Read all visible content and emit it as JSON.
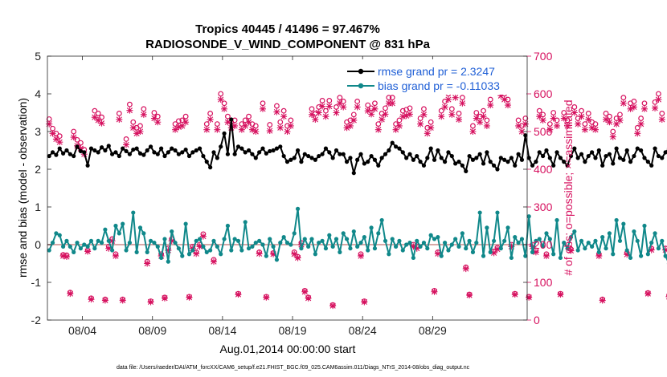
{
  "chart_data": {
    "type": "line",
    "title": "Tropics 40445 / 41496 = 97.467%",
    "subtitle": "RADIOSONDE_V_WIND_COMPONENT @ 831 hPa",
    "xlabel": "Aug.01,2014 00:00:00 start",
    "ylabel_left": "rmse and bias (model - observation)",
    "ylabel_right": "# of obs: o=possible; ×=assimilated",
    "ylim_left": [
      -2,
      5
    ],
    "yticks_left": [
      "-2",
      "-1",
      "0",
      "1",
      "2",
      "3",
      "4",
      "5"
    ],
    "ylim_right": [
      0,
      700
    ],
    "yticks_right": [
      "0",
      "100",
      "200",
      "300",
      "400",
      "500",
      "600",
      "700"
    ],
    "xlim": [
      1.5,
      35.75
    ],
    "xticks": [
      {
        "value": 4,
        "label": "08/04"
      },
      {
        "value": 9,
        "label": "08/09"
      },
      {
        "value": 14,
        "label": "08/14"
      },
      {
        "value": 19,
        "label": "08/19"
      },
      {
        "value": 24,
        "label": "08/24"
      },
      {
        "value": 29,
        "label": "08/29"
      }
    ],
    "legend": [
      {
        "label": "rmse grand pr = 2.3247",
        "color": "#000000",
        "marker": "diamond"
      },
      {
        "label": "bias grand pr = -0.11033",
        "color": "#10888a",
        "marker": "diamond"
      }
    ],
    "zero_line_color": "#d9a8a8",
    "series": [
      {
        "name": "rmse",
        "axis": "left",
        "color": "#000000",
        "values": [
          2.35,
          2.45,
          2.38,
          2.55,
          2.42,
          2.5,
          2.4,
          2.35,
          2.6,
          2.48,
          2.45,
          2.1,
          2.55,
          2.5,
          2.45,
          2.58,
          2.5,
          2.62,
          2.4,
          2.45,
          2.35,
          2.55,
          2.48,
          2.4,
          2.52,
          2.55,
          2.42,
          2.38,
          2.5,
          2.6,
          2.45,
          2.4,
          2.55,
          2.35,
          2.45,
          2.55,
          2.5,
          2.4,
          2.45,
          2.52,
          2.35,
          2.45,
          2.5,
          2.55,
          2.35,
          2.2,
          2.05,
          2.45,
          2.3,
          2.6,
          2.95,
          2.4,
          3.32,
          2.4,
          2.6,
          2.55,
          2.45,
          2.5,
          2.4,
          2.3,
          2.45,
          2.55,
          2.42,
          2.48,
          2.5,
          2.55,
          2.6,
          2.35,
          2.2,
          2.25,
          2.3,
          2.5,
          2.2,
          2.4,
          2.35,
          2.3,
          2.25,
          2.35,
          2.4,
          2.55,
          2.45,
          2.3,
          2.5,
          2.4,
          2.4,
          2.2,
          2.3,
          1.9,
          2.25,
          2.4,
          2.15,
          2.2,
          2.35,
          2.25,
          2.1,
          2.3,
          2.4,
          2.5,
          2.7,
          2.6,
          2.55,
          2.45,
          2.3,
          2.4,
          2.25,
          2.35,
          2.2,
          2.1,
          2.3,
          2.55,
          2.25,
          2.5,
          2.3,
          2.2,
          2.45,
          2.35,
          2.15,
          2.2,
          2.1,
          1.95,
          2.35,
          2.25,
          2.3,
          2.4,
          2.15,
          2.45,
          2.2,
          2.1,
          2.0,
          2.3,
          2.25,
          2.2,
          2.3,
          2.1,
          2.4,
          2.25,
          2.9,
          2.3,
          2.1,
          2.2,
          2.45,
          2.35,
          2.5,
          2.3,
          2.1,
          2.45,
          2.3,
          2.2,
          2.1,
          2.35,
          2.55,
          2.3,
          2.4,
          2.2,
          2.35,
          2.45,
          2.3,
          2.5,
          2.1,
          2.35,
          2.4,
          2.15,
          2.55,
          2.3,
          2.25,
          2.5,
          2.2,
          2.35,
          2.55,
          2.5,
          2.3,
          2.2,
          2.1,
          2.55,
          2.35,
          2.3,
          2.45,
          2.55,
          2.35,
          2.5,
          2.4,
          2.2,
          2.3,
          2.45,
          2.55,
          2.6,
          2.25,
          2.4,
          2.3,
          2.15,
          2.5,
          2.35,
          2.45,
          2.5,
          2.6,
          2.5,
          2.75,
          2.25,
          2.25,
          2.3,
          2.2,
          2.15
        ]
      },
      {
        "name": "bias",
        "axis": "left",
        "color": "#10888a",
        "values": [
          -0.15,
          0.05,
          0.3,
          0.25,
          -0.05,
          0.1,
          -0.05,
          -0.2,
          0.05,
          -0.1,
          0.0,
          -0.05,
          0.1,
          -0.1,
          0.1,
          0.05,
          0.4,
          0.1,
          -0.15,
          0.5,
          0.3,
          0.55,
          -0.15,
          0.05,
          0.85,
          -0.2,
          0.45,
          0.3,
          -0.2,
          0.1,
          0.05,
          -0.05,
          -0.35,
          0.15,
          -0.45,
          0.35,
          0.05,
          -0.1,
          -0.3,
          0.55,
          -0.25,
          -0.15,
          0.1,
          0.15,
          -0.05,
          -0.2,
          -0.15,
          0.1,
          -0.05,
          -0.25,
          0.15,
          0.5,
          -0.15,
          0.15,
          0.1,
          -0.15,
          0.6,
          -0.1,
          -0.05,
          0.05,
          0.1,
          0.0,
          -0.3,
          0.15,
          -0.05,
          -0.4,
          0.05,
          0.2,
          0.05,
          0.0,
          0.3,
          0.95,
          -0.1,
          0.15,
          -0.05,
          0.15,
          -0.25,
          0.05,
          0.1,
          -0.1,
          0.25,
          -0.05,
          0.15,
          -0.2,
          0.3,
          0.15,
          -0.1,
          0.35,
          -0.05,
          0.05,
          0.2,
          -0.15,
          0.45,
          -0.1,
          0.3,
          0.65,
          0.1,
          -0.25,
          0.15,
          -0.05,
          0.1,
          -0.15,
          0.0,
          0.05,
          -0.35,
          0.1,
          -0.05,
          0.05,
          -0.1,
          0.25,
          0.15,
          0.2,
          -0.3,
          0.05,
          -0.15,
          0.0,
          0.15,
          -0.05,
          0.3,
          -0.1,
          0.1,
          -0.2,
          0.05,
          0.85,
          -0.3,
          0.45,
          -0.2,
          0.1,
          0.85,
          -0.1,
          0.1,
          0.45,
          -0.35,
          0.2,
          0.05,
          0.15,
          -0.3,
          0.75,
          -0.2,
          0.1,
          0.15,
          -0.05,
          0.3,
          0.15,
          -0.25,
          0.65,
          -0.35,
          0.05,
          -0.1,
          0.2,
          0.35,
          -0.15,
          0.1,
          -0.1,
          0.05,
          -0.05,
          0.1,
          -0.2,
          0.2,
          -0.1,
          0.3,
          -0.25,
          0.65,
          0.1,
          0.55,
          -0.15,
          -0.35,
          0.35,
          0.1,
          -0.3,
          0.5,
          -0.25,
          0.05,
          0.3,
          -0.1,
          0.1,
          -0.3,
          -0.5,
          0.15,
          -0.15,
          0.2,
          -0.45,
          -0.1,
          0.2,
          -0.05,
          -0.15,
          0.1,
          -0.2,
          0.05,
          -0.8,
          -0.05,
          -0.1,
          -0.15,
          -0.15,
          -0.1,
          0.05,
          -0.1,
          0.8
        ]
      },
      {
        "name": "obs possible (o)",
        "axis": "right",
        "color": "#d6115f",
        "values": [
          533,
          508,
          495,
          488,
          173,
          172,
          73,
          500,
          478,
          470,
          452,
          185,
          58,
          555,
          548,
          538,
          55,
          195,
          215,
          175,
          548,
          55,
          480,
          572,
          525,
          510,
          515,
          560,
          155,
          50,
          550,
          540,
          175,
          60,
          190,
          215,
          520,
          528,
          530,
          540,
          62,
          195,
          180,
          200,
          228,
          520,
          548,
          160,
          520,
          600,
          575,
          540,
          525,
          530,
          70,
          520,
          530,
          540,
          520,
          515,
          180,
          575,
          62,
          518,
          178,
          568,
          525,
          555,
          515,
          530,
          180,
          168,
          205,
          78,
          60,
          560,
          548,
          565,
          582,
          555,
          582,
          40,
          565,
          590,
          580,
          525,
          530,
          545,
          580,
          175,
          50,
          570,
          562,
          575,
          520,
          548,
          562,
          590,
          590,
          520,
          530,
          555,
          558,
          562,
          200,
          195,
          535,
          560,
          510,
          525,
          78,
          180,
          555,
          580,
          600,
          560,
          605,
          548,
          590,
          140,
          68,
          515,
          550,
          540,
          555,
          530,
          585,
          182,
          192,
          610,
          600,
          585,
          200,
          70,
          530,
          515,
          535,
          62,
          200,
          185,
          555,
          545,
          175,
          520,
          550,
          530,
          70,
          550,
          530,
          188,
          565,
          535,
          555,
          520,
          548,
          525,
          520,
          175,
          55,
          548,
          540,
          500,
          535,
          545,
          590,
          178,
          575,
          580,
          510,
          535,
          575,
          72,
          190,
          578,
          600,
          548,
          190,
          65,
          560,
          582,
          600,
          205,
          540,
          548,
          520,
          540,
          198,
          560,
          575,
          590,
          580,
          195,
          550,
          565,
          590,
          582,
          548,
          588,
          575,
          530,
          180,
          570,
          540,
          560,
          0
        ]
      },
      {
        "name": "obs assimilated (×)",
        "axis": "right",
        "color": "#d6115f",
        "values": [
          520,
          495,
          480,
          472,
          170,
          168,
          70,
          485,
          462,
          455,
          440,
          182,
          55,
          538,
          530,
          522,
          52,
          190,
          210,
          170,
          532,
          52,
          465,
          556,
          510,
          495,
          500,
          545,
          150,
          48,
          535,
          525,
          170,
          58,
          185,
          210,
          505,
          512,
          515,
          525,
          60,
          190,
          176,
          195,
          222,
          505,
          532,
          155,
          505,
          585,
          560,
          525,
          510,
          515,
          68,
          505,
          515,
          525,
          505,
          500,
          176,
          560,
          60,
          502,
          175,
          552,
          510,
          540,
          500,
          515,
          175,
          165,
          200,
          75,
          58,
          545,
          532,
          550,
          567,
          540,
          567,
          38,
          550,
          575,
          565,
          510,
          515,
          530,
          565,
          170,
          48,
          555,
          546,
          560,
          505,
          532,
          546,
          575,
          575,
          505,
          515,
          540,
          542,
          546,
          195,
          190,
          520,
          545,
          495,
          510,
          75,
          176,
          540,
          565,
          585,
          545,
          590,
          532,
          575,
          136,
          66,
          500,
          535,
          525,
          540,
          515,
          570,
          178,
          188,
          595,
          585,
          570,
          195,
          68,
          515,
          500,
          520,
          60,
          195,
          180,
          540,
          530,
          170,
          505,
          535,
          515,
          68,
          535,
          515,
          184,
          550,
          520,
          540,
          505,
          532,
          510,
          505,
          170,
          52,
          532,
          525,
          486,
          520,
          530,
          575,
          174,
          560,
          565,
          495,
          520,
          560,
          70,
          186,
          562,
          585,
          532,
          186,
          62,
          545,
          567,
          585,
          200,
          525,
          532,
          505,
          525,
          193,
          545,
          560,
          575,
          565,
          190,
          535,
          550,
          575,
          567,
          532,
          573,
          560,
          515,
          176,
          555,
          525,
          545,
          0
        ]
      }
    ]
  },
  "footer": "data file: /Users/raeder/DAI/ATM_forcXX/CAM6_setup/f.e21.FHIST_BGC.f09_025.CAM6assim.011/Diags_NTrS_2014-08/obs_diag_output.nc"
}
